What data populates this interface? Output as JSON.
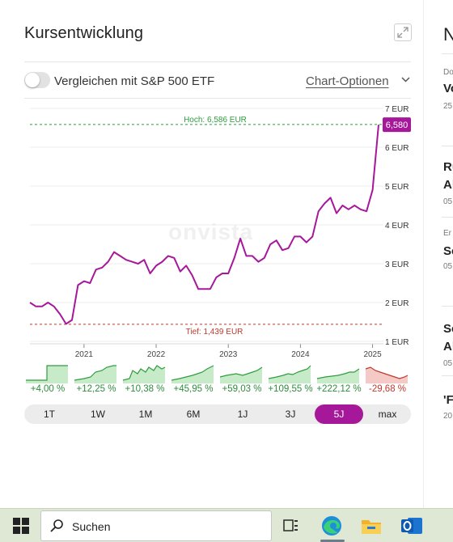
{
  "widget": {
    "title": "Kursentwicklung",
    "compare_label": "Vergleichen mit S&P 500 ETF",
    "chart_options_label": "Chart-Optionen",
    "watermark": "onvista"
  },
  "chart_data": {
    "type": "line",
    "y_unit": "EUR",
    "ylim": [
      0.9,
      7.2
    ],
    "y_ticks": [
      "7 EUR",
      "6 EUR",
      "5 EUR",
      "4 EUR",
      "3 EUR",
      "2 EUR",
      "1 EUR"
    ],
    "x_ticks": [
      "2021",
      "2022",
      "2023",
      "2024",
      "2025"
    ],
    "high_label": "Hoch: 6,586 EUR",
    "low_label": "Tief: 1,439 EUR",
    "high_value": 6.586,
    "low_value": 1.439,
    "last_value_label": "6,580",
    "series": [
      {
        "color": "#a6189a",
        "x": [
          "2020-04",
          "2020-05",
          "2020-06",
          "2020-07",
          "2020-08",
          "2020-09",
          "2020-10",
          "2020-11",
          "2020-12",
          "2021-01",
          "2021-02",
          "2021-03",
          "2021-04",
          "2021-05",
          "2021-06",
          "2021-07",
          "2021-08",
          "2021-09",
          "2021-10",
          "2021-11",
          "2021-12",
          "2022-01",
          "2022-02",
          "2022-03",
          "2022-04",
          "2022-05",
          "2022-06",
          "2022-07",
          "2022-08",
          "2022-09",
          "2022-10",
          "2022-11",
          "2022-12",
          "2023-01",
          "2023-02",
          "2023-03",
          "2023-04",
          "2023-05",
          "2023-06",
          "2023-07",
          "2023-08",
          "2023-09",
          "2023-10",
          "2023-11",
          "2023-12",
          "2024-01",
          "2024-02",
          "2024-03",
          "2024-04",
          "2024-05",
          "2024-06",
          "2024-07",
          "2024-08",
          "2024-09",
          "2024-10",
          "2024-11",
          "2024-12",
          "2025-01",
          "2025-02"
        ],
        "y": [
          2.0,
          1.9,
          1.9,
          2.0,
          1.9,
          1.7,
          1.45,
          1.55,
          2.45,
          2.55,
          2.5,
          2.85,
          2.9,
          3.05,
          3.3,
          3.2,
          3.1,
          3.05,
          3.0,
          3.1,
          2.75,
          2.95,
          3.05,
          3.2,
          3.15,
          2.8,
          2.95,
          2.7,
          2.35,
          2.35,
          2.35,
          2.65,
          2.75,
          2.75,
          3.15,
          3.65,
          3.2,
          3.2,
          3.05,
          3.15,
          3.5,
          3.6,
          3.35,
          3.4,
          3.7,
          3.7,
          3.55,
          3.7,
          4.35,
          4.55,
          4.7,
          4.3,
          4.5,
          4.4,
          4.5,
          4.4,
          4.35,
          4.9,
          6.58
        ]
      }
    ]
  },
  "performance": [
    {
      "label": "+4,00 %",
      "trend": "pos"
    },
    {
      "label": "+12,25 %",
      "trend": "pos"
    },
    {
      "label": "+10,38 %",
      "trend": "pos"
    },
    {
      "label": "+45,95 %",
      "trend": "pos"
    },
    {
      "label": "+59,03 %",
      "trend": "pos"
    },
    {
      "label": "+109,55 %",
      "trend": "pos"
    },
    {
      "label": "+222,12 %",
      "trend": "pos"
    },
    {
      "label": "-29,68 %",
      "trend": "neg"
    }
  ],
  "range_buttons": [
    {
      "label": "1T",
      "active": false
    },
    {
      "label": "1W",
      "active": false
    },
    {
      "label": "1M",
      "active": false
    },
    {
      "label": "6M",
      "active": false
    },
    {
      "label": "1J",
      "active": false
    },
    {
      "label": "3J",
      "active": false
    },
    {
      "label": "5J",
      "active": true
    },
    {
      "label": "max",
      "active": false
    }
  ],
  "right_column": {
    "heading": "N",
    "items": [
      {
        "t1": "Do",
        "t2": "Vo",
        "t3": "25"
      },
      {
        "t1": "Rü",
        "t2": "Al",
        "t3": "05"
      },
      {
        "t1": "Er",
        "t2": "Sc",
        "t3": "05"
      },
      {
        "t1": "Sc",
        "t2": "Al",
        "t3": "05"
      },
      {
        "t1": "'F",
        "t2": "20"
      }
    ]
  },
  "taskbar": {
    "search_label": "Suchen"
  },
  "colors": {
    "accent": "#a6189a",
    "positive": "#2e8b3c",
    "negative": "#c0392b",
    "high_line": "#2e9e3e",
    "low_line": "#c0392b"
  }
}
